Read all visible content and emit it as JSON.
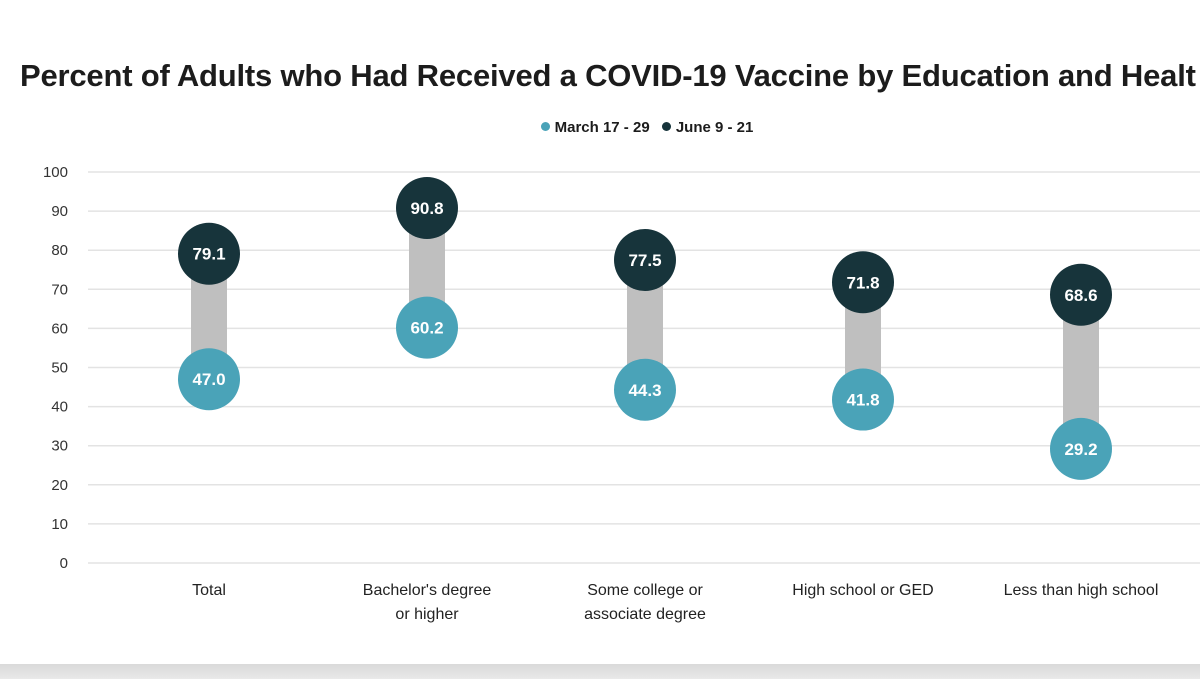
{
  "chart_data": {
    "type": "dumbbell",
    "title": "Percent of Adults who Had Received a COVID-19 Vaccine by Education and Healt",
    "categories": [
      "Total",
      "Bachelor's degree or higher",
      "Some college or associate degree",
      "High school or GED",
      "Less than high school"
    ],
    "category_lines": [
      [
        "Total"
      ],
      [
        "Bachelor's degree",
        "or higher"
      ],
      [
        "Some college or",
        "associate degree"
      ],
      [
        "High school or GED"
      ],
      [
        "Less than high school"
      ]
    ],
    "series": [
      {
        "name": "March 17 - 29",
        "color": "#4aa3b8",
        "values": [
          47.0,
          60.2,
          44.3,
          41.8,
          29.2
        ],
        "labels": [
          "47.0",
          "60.2",
          "44.3",
          "41.8",
          "29.2"
        ]
      },
      {
        "name": "June 9 - 21",
        "color": "#17343b",
        "values": [
          79.1,
          90.8,
          77.5,
          71.8,
          68.6
        ],
        "labels": [
          "79.1",
          "90.8",
          "77.5",
          "71.8",
          "68.6"
        ]
      }
    ],
    "connector_color": "#bfbfbf",
    "ylim": [
      0,
      100
    ],
    "yticks": [
      "0",
      "10",
      "20",
      "30",
      "40",
      "50",
      "60",
      "70",
      "80",
      "90",
      "100"
    ],
    "grid": true,
    "legend_position": "top-center",
    "xlabel": "",
    "ylabel": ""
  }
}
